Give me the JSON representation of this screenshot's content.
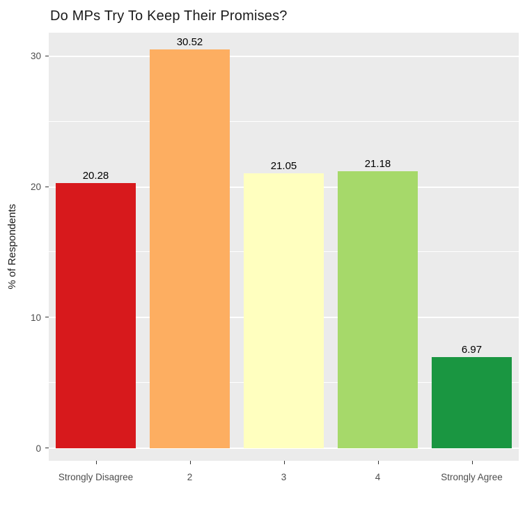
{
  "chart_data": {
    "type": "bar",
    "title": "Do MPs Try To Keep Their Promises?",
    "xlabel": "",
    "ylabel": "% of Respondents",
    "categories": [
      "Strongly Disagree",
      "2",
      "3",
      "4",
      "Strongly Agree"
    ],
    "values": [
      20.28,
      30.52,
      21.05,
      21.18,
      6.97
    ],
    "bar_labels": [
      "20.28",
      "30.52",
      "21.05",
      "21.18",
      "6.97"
    ],
    "bar_colors": [
      "#d7191c",
      "#fdae61",
      "#ffffbf",
      "#a6d96a",
      "#1a9641"
    ],
    "ylim": [
      0,
      31.8
    ],
    "yticks": [
      0,
      10,
      20,
      30
    ],
    "yticks_minor": [
      5,
      15,
      25
    ],
    "grid": true,
    "legend": false,
    "panel_bg": "#ebebeb",
    "grid_color": "#ffffff",
    "tick_label_color": "#4d4d4d",
    "value_label_color": "#000000"
  }
}
